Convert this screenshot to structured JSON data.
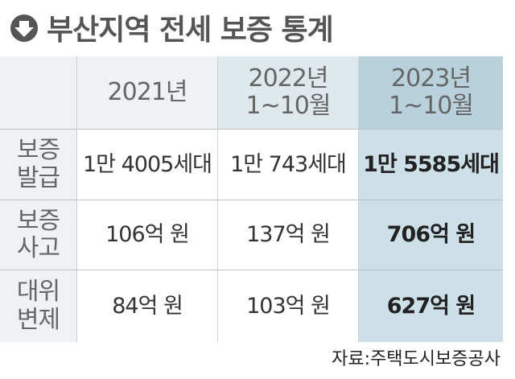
{
  "header": {
    "title": "부산지역 전세 보증 통계"
  },
  "table": {
    "columns": [
      [
        "2021년"
      ],
      [
        "2022년",
        "1~10월"
      ],
      [
        "2023년",
        "1~10월"
      ]
    ],
    "rows": [
      {
        "label": [
          "보증",
          "발급"
        ],
        "cells": [
          "1만 4005세대",
          "1만 743세대",
          "1만 5585세대"
        ]
      },
      {
        "label": [
          "보증",
          "사고"
        ],
        "cells": [
          "106억 원",
          "137억 원",
          "706억 원"
        ]
      },
      {
        "label": [
          "대위",
          "변제"
        ],
        "cells": [
          "84억 원",
          "103억 원",
          "627억 원"
        ]
      }
    ]
  },
  "source": "자료:주택도시보증공사"
}
